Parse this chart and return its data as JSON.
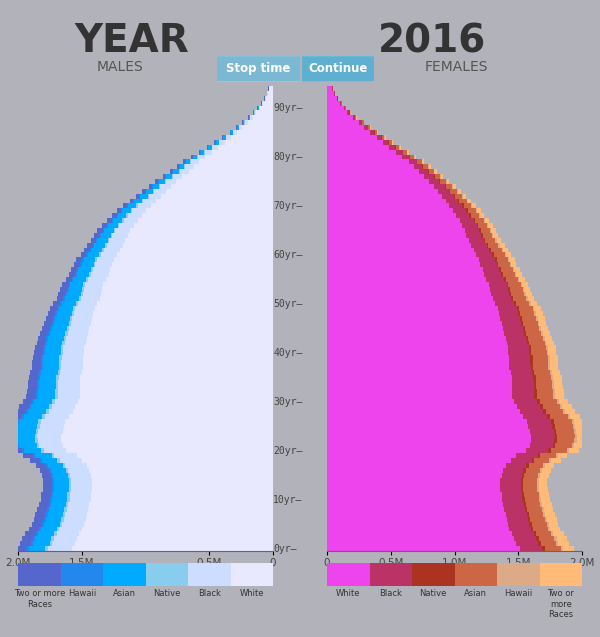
{
  "title_year": "YEAR",
  "year_value": "2016",
  "background_color": "#b2b2ba",
  "male_colors": [
    "#e8e8ff",
    "#ccddff",
    "#88ccee",
    "#00aaff",
    "#2288ee",
    "#5566cc"
  ],
  "female_colors": [
    "#ee44ee",
    "#bb3366",
    "#aa3322",
    "#cc6644",
    "#ddaa88",
    "#ffbb77"
  ],
  "male_leg_colors": [
    "#5566cc",
    "#2288ee",
    "#00aaff",
    "#88ccee",
    "#ccddff",
    "#e8e8ff"
  ],
  "female_leg_colors": [
    "#ee44ee",
    "#bb3366",
    "#aa3322",
    "#cc6644",
    "#ddaa88",
    "#ffbb77"
  ],
  "male_leg_labels": [
    "Two or more\nRaces",
    "Hawaii",
    "Asian",
    "Native",
    "Black",
    "White"
  ],
  "female_leg_labels": [
    "White",
    "Black",
    "Native",
    "Asian",
    "Hawaii",
    "Two or\nmore\nRaces"
  ],
  "xlim_left": 2000000,
  "xlim_right": 2000000,
  "ytick_positions": [
    0,
    10,
    20,
    30,
    40,
    50,
    60,
    70,
    80,
    90
  ],
  "ytick_labels": [
    "0yr",
    "10yr",
    "20yr",
    "30yr",
    "40yr",
    "50yr",
    "60yr",
    "70yr",
    "80yr",
    "90yr"
  ],
  "male_white": [
    1580000,
    1550000,
    1540000,
    1520000,
    1500000,
    1480000,
    1470000,
    1460000,
    1450000,
    1440000,
    1430000,
    1430000,
    1420000,
    1420000,
    1420000,
    1430000,
    1440000,
    1460000,
    1500000,
    1540000,
    1620000,
    1650000,
    1660000,
    1660000,
    1650000,
    1640000,
    1630000,
    1600000,
    1570000,
    1550000,
    1530000,
    1510000,
    1510000,
    1510000,
    1510000,
    1510000,
    1500000,
    1490000,
    1490000,
    1490000,
    1480000,
    1480000,
    1470000,
    1460000,
    1450000,
    1440000,
    1430000,
    1420000,
    1410000,
    1400000,
    1380000,
    1360000,
    1350000,
    1340000,
    1330000,
    1310000,
    1290000,
    1280000,
    1260000,
    1250000,
    1220000,
    1200000,
    1180000,
    1160000,
    1140000,
    1120000,
    1090000,
    1060000,
    1030000,
    1000000,
    960000,
    920000,
    880000,
    840000,
    800000,
    760000,
    710000,
    660000,
    620000,
    580000,
    530000,
    480000,
    430000,
    380000,
    330000,
    280000,
    240000,
    200000,
    160000,
    130000,
    100000,
    75000,
    55000,
    40000,
    30000
  ],
  "male_black": [
    185000,
    180000,
    178000,
    176000,
    175000,
    174000,
    172000,
    170000,
    168000,
    167000,
    166000,
    165000,
    164000,
    163000,
    162000,
    163000,
    165000,
    168000,
    172000,
    176000,
    180000,
    184000,
    187000,
    189000,
    190000,
    191000,
    191000,
    190000,
    188000,
    186000,
    183000,
    180000,
    178000,
    176000,
    174000,
    172000,
    171000,
    170000,
    169000,
    168000,
    167000,
    165000,
    164000,
    162000,
    160000,
    158000,
    156000,
    154000,
    152000,
    150000,
    148000,
    146000,
    144000,
    143000,
    141000,
    139000,
    137000,
    135000,
    133000,
    131000,
    129000,
    127000,
    125000,
    123000,
    121000,
    118000,
    115000,
    112000,
    109000,
    106000,
    102000,
    98000,
    94000,
    90000,
    86000,
    82000,
    77000,
    72000,
    68000,
    64000,
    58000,
    52000,
    47000,
    42000,
    37000,
    32000,
    27000,
    22000,
    18000,
    14000,
    11000,
    8000,
    6000,
    4000,
    3000
  ],
  "male_native": [
    22000,
    21500,
    21000,
    20500,
    20000,
    19800,
    19600,
    19400,
    19200,
    19000,
    18800,
    18700,
    18600,
    18500,
    18400,
    18500,
    18700,
    19000,
    19400,
    19800,
    20300,
    20700,
    21000,
    21200,
    21300,
    21200,
    21000,
    20700,
    20400,
    20100,
    19800,
    19500,
    19300,
    19100,
    18900,
    18800,
    18700,
    18600,
    18500,
    18400,
    18300,
    18100,
    17900,
    17700,
    17500,
    17300,
    17100,
    16900,
    16700,
    16500,
    16200,
    16000,
    15800,
    15600,
    15400,
    15100,
    14900,
    14700,
    14400,
    14200,
    13900,
    13700,
    13400,
    13100,
    12900,
    12600,
    12200,
    11900,
    11500,
    11100,
    10700,
    10300,
    9900,
    9400,
    9000,
    8500,
    8000,
    7500,
    7000,
    6500,
    5900,
    5300,
    4800,
    4300,
    3800,
    3300,
    2900,
    2400,
    2000,
    1600,
    1300,
    1000,
    750,
    550,
    400
  ],
  "male_asian": [
    130000,
    128000,
    126000,
    124000,
    122000,
    121000,
    120000,
    119000,
    118000,
    117000,
    116000,
    115000,
    115000,
    114000,
    114000,
    115000,
    117000,
    119000,
    123000,
    127000,
    132000,
    137000,
    141000,
    144000,
    146000,
    147000,
    147000,
    146000,
    144000,
    141000,
    138000,
    135000,
    133000,
    131000,
    129000,
    128000,
    128000,
    127000,
    127000,
    126000,
    126000,
    125000,
    124000,
    123000,
    121000,
    120000,
    118000,
    117000,
    115000,
    114000,
    111000,
    109000,
    107000,
    105000,
    103000,
    101000,
    98000,
    96000,
    94000,
    91000,
    89000,
    87000,
    84000,
    82000,
    79000,
    77000,
    74000,
    71000,
    68000,
    65000,
    62000,
    59000,
    56000,
    53000,
    50000,
    47000,
    44000,
    41000,
    38000,
    35000,
    32000,
    28000,
    25000,
    22000,
    19000,
    16000,
    14000,
    11000,
    9000,
    7000,
    5500,
    4000,
    3000,
    2200,
    1600
  ],
  "male_hawaii": [
    18000,
    17700,
    17400,
    17100,
    16800,
    16600,
    16400,
    16200,
    16000,
    15900,
    15800,
    15700,
    15600,
    15600,
    15500,
    15600,
    15800,
    16000,
    16400,
    16800,
    17300,
    17700,
    18000,
    18200,
    18300,
    18200,
    18000,
    17700,
    17400,
    17100,
    16800,
    16500,
    16300,
    16100,
    15900,
    15800,
    15700,
    15600,
    15500,
    15400,
    15300,
    15100,
    14900,
    14700,
    14500,
    14300,
    14100,
    13900,
    13700,
    13500,
    13200,
    13000,
    12800,
    12600,
    12400,
    12100,
    11900,
    11700,
    11400,
    11200,
    10900,
    10700,
    10400,
    10100,
    9900,
    9600,
    9200,
    8900,
    8600,
    8200,
    7800,
    7400,
    7100,
    6700,
    6300,
    5900,
    5500,
    5100,
    4800,
    4400,
    4000,
    3600,
    3200,
    2800,
    2500,
    2100,
    1800,
    1500,
    1200,
    1000,
    800,
    600,
    450,
    330,
    240
  ],
  "male_multiracial": [
    90000,
    88000,
    86000,
    84000,
    82000,
    81000,
    80000,
    79000,
    78000,
    77000,
    76000,
    75000,
    74000,
    73000,
    72000,
    73000,
    74000,
    75000,
    77000,
    79000,
    81000,
    83000,
    84000,
    85000,
    85000,
    84000,
    83000,
    82000,
    80000,
    78000,
    76000,
    74000,
    73000,
    72000,
    71000,
    70000,
    69000,
    68000,
    67000,
    66000,
    65000,
    64000,
    63000,
    62000,
    61000,
    60000,
    59000,
    58000,
    57000,
    56000,
    55000,
    54000,
    53000,
    52000,
    51000,
    50000,
    49000,
    48000,
    47000,
    46000,
    45000,
    44000,
    43000,
    42000,
    41000,
    40000,
    38000,
    37000,
    35000,
    34000,
    32000,
    30000,
    28000,
    27000,
    25000,
    23000,
    21000,
    19000,
    17500,
    16000,
    14500,
    13000,
    11500,
    10000,
    8800,
    7600,
    6500,
    5500,
    4500,
    3700,
    3000,
    2400,
    1800,
    1400,
    1000
  ],
  "female_white": [
    1510000,
    1480000,
    1470000,
    1450000,
    1430000,
    1420000,
    1410000,
    1400000,
    1390000,
    1380000,
    1370000,
    1370000,
    1360000,
    1360000,
    1360000,
    1370000,
    1380000,
    1400000,
    1440000,
    1480000,
    1560000,
    1590000,
    1600000,
    1600000,
    1590000,
    1580000,
    1570000,
    1540000,
    1510000,
    1490000,
    1470000,
    1450000,
    1450000,
    1450000,
    1450000,
    1450000,
    1440000,
    1430000,
    1430000,
    1430000,
    1420000,
    1420000,
    1410000,
    1400000,
    1390000,
    1380000,
    1370000,
    1360000,
    1350000,
    1340000,
    1320000,
    1300000,
    1290000,
    1280000,
    1270000,
    1250000,
    1230000,
    1220000,
    1200000,
    1190000,
    1170000,
    1150000,
    1130000,
    1110000,
    1090000,
    1080000,
    1060000,
    1040000,
    1010000,
    990000,
    960000,
    930000,
    900000,
    870000,
    840000,
    800000,
    760000,
    720000,
    680000,
    640000,
    590000,
    540000,
    490000,
    440000,
    390000,
    340000,
    290000,
    250000,
    200000,
    160000,
    130000,
    100000,
    75000,
    55000,
    40000
  ],
  "female_black": [
    178000,
    175000,
    173000,
    171000,
    169000,
    168000,
    167000,
    165000,
    164000,
    163000,
    162000,
    161000,
    160000,
    159000,
    158000,
    159000,
    161000,
    164000,
    168000,
    173000,
    177000,
    181000,
    184000,
    186000,
    187000,
    188000,
    188000,
    187000,
    185000,
    183000,
    180000,
    177000,
    175000,
    173000,
    171000,
    169000,
    168000,
    167000,
    166000,
    165000,
    164000,
    162000,
    161000,
    159000,
    157000,
    155000,
    153000,
    151000,
    149000,
    147000,
    145000,
    143000,
    141000,
    139000,
    138000,
    136000,
    134000,
    132000,
    130000,
    128000,
    126000,
    124000,
    122000,
    120000,
    118000,
    115000,
    113000,
    110000,
    107000,
    104000,
    101000,
    97000,
    93000,
    89000,
    85000,
    81000,
    77000,
    72000,
    68000,
    63000,
    58000,
    53000,
    47000,
    42000,
    37000,
    32000,
    28000,
    23000,
    19000,
    15000,
    12000,
    9000,
    7000,
    5000,
    4000
  ],
  "female_native": [
    21000,
    20500,
    20000,
    19600,
    19200,
    19000,
    18800,
    18600,
    18400,
    18200,
    18100,
    18000,
    17900,
    17800,
    17700,
    17800,
    18000,
    18300,
    18700,
    19100,
    19600,
    20000,
    20300,
    20500,
    20600,
    20500,
    20300,
    20000,
    19700,
    19400,
    19100,
    18800,
    18600,
    18400,
    18200,
    18100,
    18000,
    17900,
    17800,
    17700,
    17600,
    17400,
    17200,
    17000,
    16800,
    16600,
    16400,
    16200,
    16000,
    15800,
    15500,
    15300,
    15100,
    14900,
    14700,
    14400,
    14200,
    14000,
    13700,
    13500,
    13200,
    13000,
    12700,
    12400,
    12200,
    11900,
    11500,
    11200,
    10800,
    10500,
    10100,
    9700,
    9300,
    8900,
    8400,
    8000,
    7500,
    7000,
    6600,
    6100,
    5600,
    5100,
    4600,
    4100,
    3600,
    3100,
    2700,
    2300,
    1900,
    1500,
    1200,
    900,
    700,
    500,
    380
  ],
  "female_asian": [
    125000,
    123000,
    121000,
    119000,
    117000,
    116000,
    115000,
    114000,
    113000,
    112000,
    111000,
    110000,
    110000,
    109000,
    109000,
    110000,
    112000,
    114000,
    118000,
    122000,
    127000,
    132000,
    136000,
    139000,
    141000,
    142000,
    142000,
    141000,
    139000,
    136000,
    133000,
    130000,
    128000,
    126000,
    124000,
    123000,
    123000,
    122000,
    122000,
    121000,
    121000,
    120000,
    119000,
    118000,
    116000,
    115000,
    113000,
    112000,
    110000,
    109000,
    106000,
    104000,
    102000,
    100000,
    98000,
    96000,
    93000,
    91000,
    89000,
    87000,
    85000,
    83000,
    80000,
    78000,
    76000,
    74000,
    72000,
    69000,
    67000,
    64000,
    61000,
    58000,
    55000,
    52000,
    49000,
    46000,
    43000,
    40000,
    38000,
    35000,
    32000,
    29000,
    26000,
    23000,
    20000,
    17000,
    14000,
    12000,
    9500,
    7500,
    6000,
    4500,
    3400,
    2500,
    1800
  ],
  "female_hawaii": [
    17000,
    16700,
    16400,
    16100,
    15800,
    15600,
    15400,
    15200,
    15000,
    14900,
    14800,
    14700,
    14600,
    14600,
    14500,
    14600,
    14800,
    15000,
    15400,
    15800,
    16300,
    16700,
    17000,
    17200,
    17300,
    17200,
    17000,
    16700,
    16400,
    16100,
    15800,
    15500,
    15300,
    15100,
    14900,
    14800,
    14700,
    14600,
    14500,
    14400,
    14300,
    14100,
    13900,
    13700,
    13500,
    13300,
    13100,
    12900,
    12700,
    12500,
    12200,
    12000,
    11800,
    11600,
    11400,
    11100,
    10900,
    10700,
    10400,
    10200,
    9900,
    9700,
    9400,
    9100,
    8900,
    8600,
    8200,
    7900,
    7600,
    7200,
    6800,
    6400,
    6100,
    5700,
    5300,
    4900,
    4500,
    4100,
    3800,
    3500,
    3100,
    2800,
    2500,
    2200,
    1900,
    1600,
    1400,
    1100,
    900,
    700,
    600,
    450,
    330,
    240,
    180
  ],
  "female_multiracial": [
    86000,
    84000,
    82000,
    80000,
    78000,
    77000,
    76000,
    75000,
    74000,
    73000,
    72000,
    71000,
    70000,
    69000,
    68000,
    69000,
    70000,
    71000,
    73000,
    75000,
    77000,
    79000,
    80000,
    81000,
    81000,
    80000,
    79000,
    78000,
    76000,
    74000,
    72000,
    70000,
    69000,
    68000,
    67000,
    66000,
    65000,
    64000,
    63000,
    62000,
    61000,
    60000,
    59000,
    58000,
    57000,
    56000,
    55000,
    54000,
    53000,
    52000,
    51000,
    50000,
    49000,
    48000,
    47000,
    46000,
    45000,
    44000,
    43000,
    42000,
    41000,
    40000,
    39000,
    38000,
    37000,
    36000,
    34000,
    33000,
    31000,
    30000,
    28000,
    26000,
    25000,
    23000,
    21000,
    20000,
    18000,
    17000,
    15500,
    14000,
    12500,
    11000,
    9500,
    8500,
    7500,
    6500,
    5500,
    4500,
    3800,
    3000,
    2400,
    1800,
    1400,
    1000,
    750
  ]
}
